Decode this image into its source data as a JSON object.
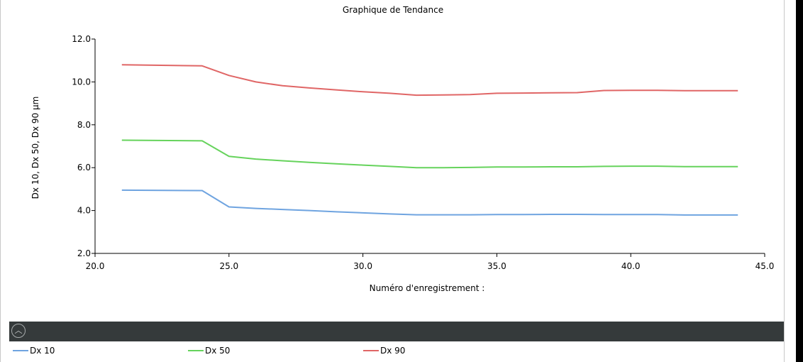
{
  "chart_data": {
    "type": "line",
    "title": "Graphique de Tendance",
    "xlabel": "Numéro d'enregistrement :",
    "ylabel": "Dx 10, Dx 50, Dx 90 µm",
    "xlim": [
      20,
      45
    ],
    "ylim": [
      2,
      12
    ],
    "x_ticks": [
      "20.0",
      "25.0",
      "30.0",
      "35.0",
      "40.0",
      "45.0"
    ],
    "y_ticks": [
      "2.0",
      "4.0",
      "6.0",
      "8.0",
      "10.0",
      "12.0"
    ],
    "grid": false,
    "legend_position": "bottom",
    "x": [
      21,
      24,
      25,
      26,
      27,
      28,
      29,
      30,
      31,
      32,
      33,
      34,
      35,
      36,
      37,
      38,
      39,
      40,
      41,
      42,
      43,
      44
    ],
    "series": [
      {
        "name": "Dx 10",
        "color": "#6fa4e0",
        "values": [
          4.95,
          4.93,
          4.17,
          4.1,
          4.05,
          4.0,
          3.94,
          3.89,
          3.84,
          3.8,
          3.8,
          3.8,
          3.81,
          3.81,
          3.82,
          3.82,
          3.81,
          3.81,
          3.81,
          3.79,
          3.79,
          3.79
        ]
      },
      {
        "name": "Dx 50",
        "color": "#66d35c",
        "values": [
          7.28,
          7.25,
          6.53,
          6.4,
          6.32,
          6.25,
          6.18,
          6.12,
          6.06,
          6.0,
          6.0,
          6.01,
          6.03,
          6.03,
          6.04,
          6.04,
          6.06,
          6.07,
          6.07,
          6.05,
          6.05,
          6.05
        ]
      },
      {
        "name": "Dx 90",
        "color": "#e06666",
        "values": [
          10.8,
          10.75,
          10.3,
          10.0,
          9.82,
          9.72,
          9.63,
          9.54,
          9.47,
          9.38,
          9.39,
          9.41,
          9.47,
          9.48,
          9.49,
          9.5,
          9.6,
          9.61,
          9.61,
          9.59,
          9.59,
          9.59
        ]
      }
    ]
  },
  "toolbar": {
    "collapse_icon": "chevron-up-icon",
    "background": "#353a3b"
  }
}
